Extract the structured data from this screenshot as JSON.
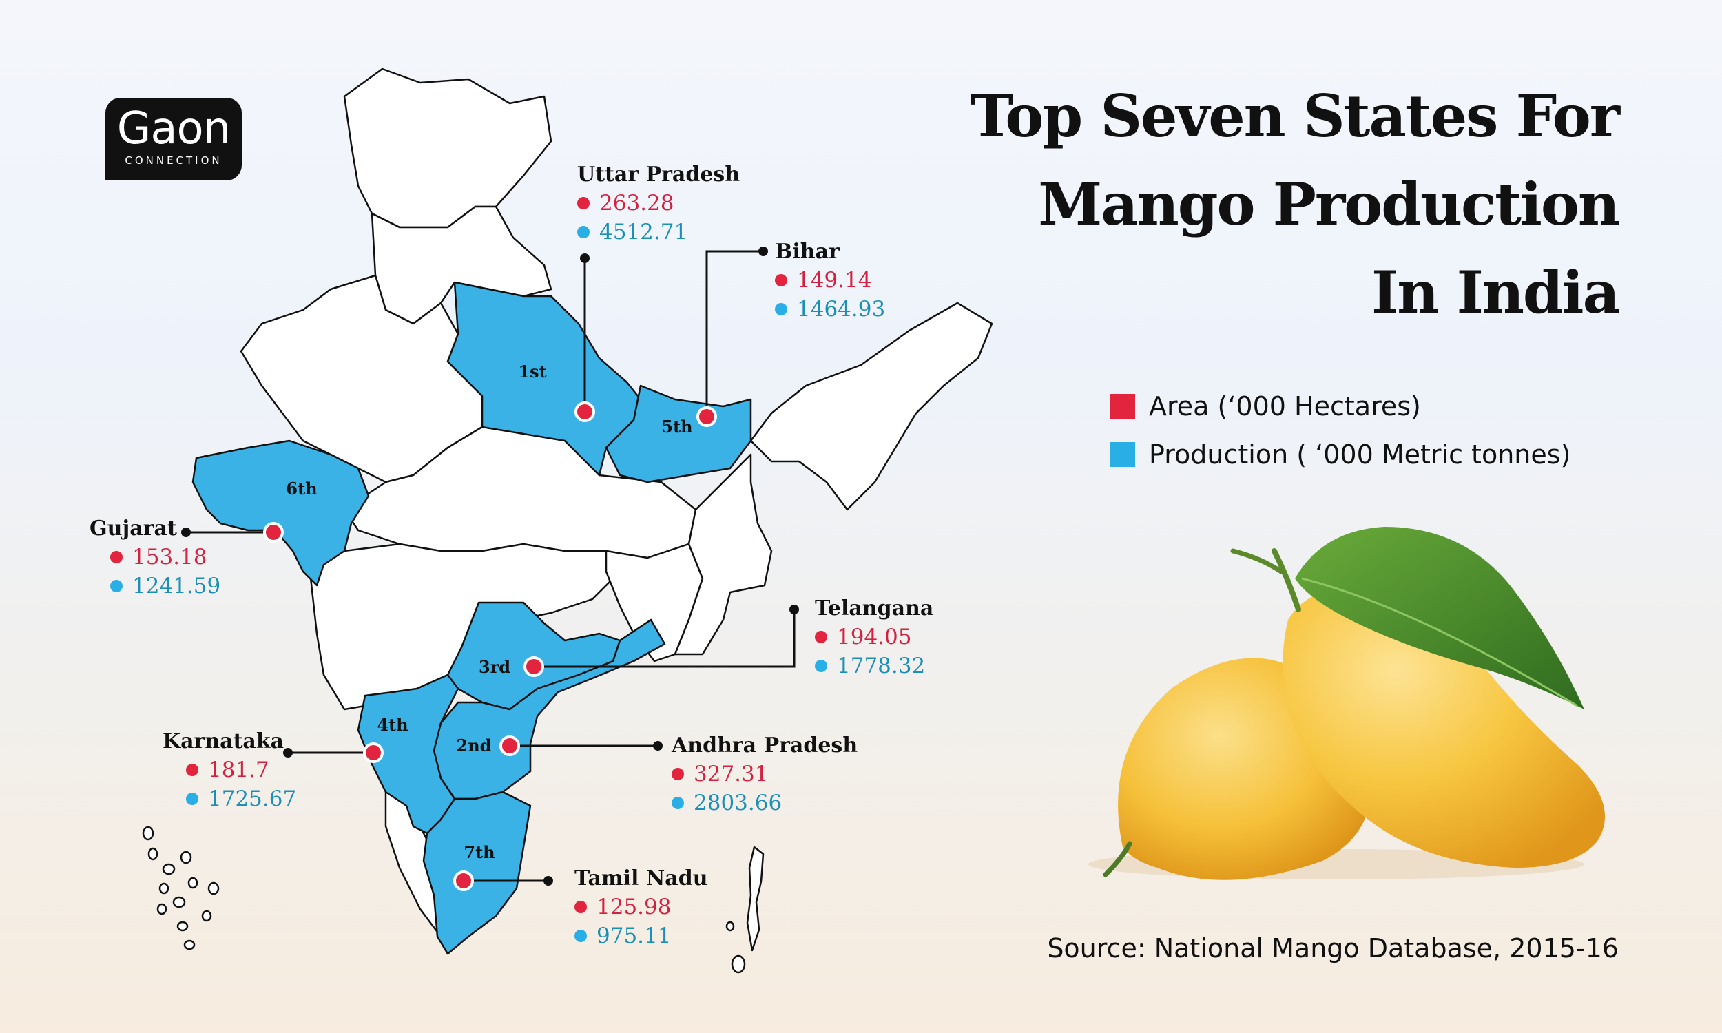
{
  "brand": {
    "name": "Gaon",
    "tagline": "CONNECTION"
  },
  "title": {
    "line1": "Top Seven States For",
    "line2": "Mango Production",
    "line3": "In India"
  },
  "legend": {
    "area_label": "Area (‘000 Hectares)",
    "production_label": "Production ( ‘000 Metric tonnes)",
    "area_color": "#e2243f",
    "production_color": "#29aee6"
  },
  "colors": {
    "highlight": "#3ab2e6",
    "border": "#111111",
    "marker": "#e2243f"
  },
  "source": "Source: National Mango Database, 2015-16",
  "states": [
    {
      "name": "Uttar Pradesh",
      "rank": "1st",
      "area": "263.28",
      "production": "4512.71"
    },
    {
      "name": "Andhra Pradesh",
      "rank": "2nd",
      "area": "327.31",
      "production": "2803.66"
    },
    {
      "name": "Telangana",
      "rank": "3rd",
      "area": "194.05",
      "production": "1778.32"
    },
    {
      "name": "Karnataka",
      "rank": "4th",
      "area": "181.7",
      "production": "1725.67"
    },
    {
      "name": "Bihar",
      "rank": "5th",
      "area": "149.14",
      "production": "1464.93"
    },
    {
      "name": "Gujarat",
      "rank": "6th",
      "area": "153.18",
      "production": "1241.59"
    },
    {
      "name": "Tamil Nadu",
      "rank": "7th",
      "area": "125.98",
      "production": "975.11"
    }
  ]
}
